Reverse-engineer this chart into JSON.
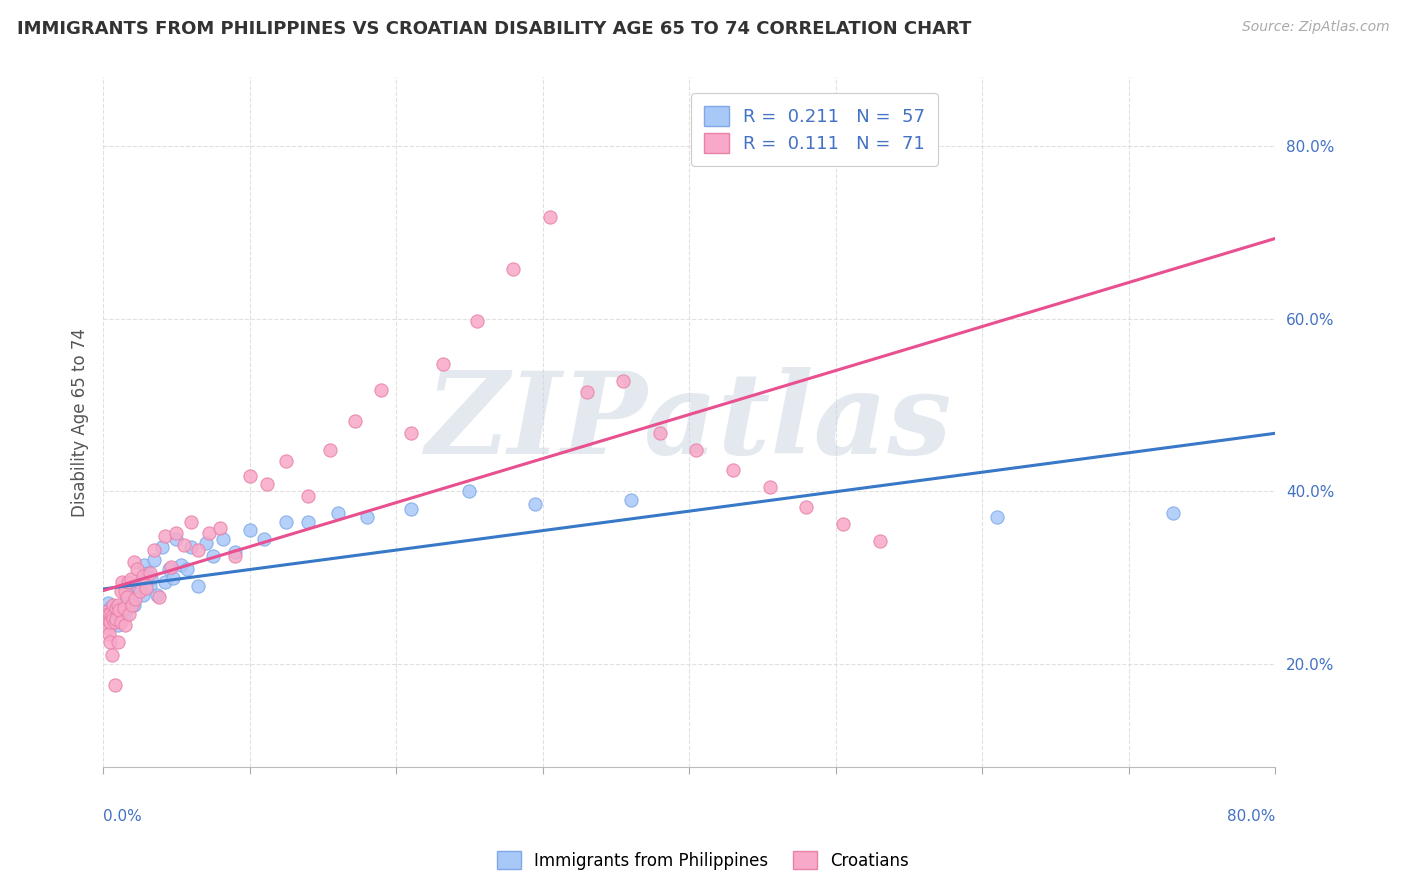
{
  "title": "IMMIGRANTS FROM PHILIPPINES VS CROATIAN DISABILITY AGE 65 TO 74 CORRELATION CHART",
  "source": "Source: ZipAtlas.com",
  "ylabel": "Disability Age 65 to 74",
  "legend_label1": "Immigrants from Philippines",
  "legend_label2": "Croatians",
  "R1": 0.211,
  "N1": 57,
  "R2": 0.111,
  "N2": 71,
  "xlim": [
    0.0,
    0.8
  ],
  "ylim": [
    0.08,
    0.88
  ],
  "yticks": [
    0.2,
    0.4,
    0.6,
    0.8
  ],
  "color_blue": "#A8C8F8",
  "color_pink": "#F8A8C8",
  "color_blue_edge": "#80A8E8",
  "color_pink_edge": "#E880A8",
  "color_blue_line": "#5090D8",
  "color_pink_line": "#E8608888",
  "watermark_color": "#C8D8E8",
  "background_color": "#FFFFFF",
  "blue_points_x": [
    0.003,
    0.005,
    0.006,
    0.007,
    0.008,
    0.008,
    0.009,
    0.01,
    0.01,
    0.011,
    0.012,
    0.013,
    0.013,
    0.014,
    0.015,
    0.015,
    0.016,
    0.017,
    0.018,
    0.019,
    0.02,
    0.021,
    0.022,
    0.023,
    0.025,
    0.027,
    0.028,
    0.03,
    0.032,
    0.033,
    0.035,
    0.037,
    0.04,
    0.042,
    0.045,
    0.048,
    0.05,
    0.053,
    0.057,
    0.06,
    0.065,
    0.07,
    0.075,
    0.082,
    0.09,
    0.1,
    0.11,
    0.125,
    0.14,
    0.16,
    0.18,
    0.21,
    0.25,
    0.295,
    0.36,
    0.61,
    0.73
  ],
  "blue_points_y": [
    0.27,
    0.265,
    0.26,
    0.258,
    0.255,
    0.25,
    0.248,
    0.26,
    0.245,
    0.265,
    0.258,
    0.262,
    0.255,
    0.268,
    0.265,
    0.255,
    0.275,
    0.265,
    0.275,
    0.27,
    0.285,
    0.268,
    0.282,
    0.29,
    0.295,
    0.28,
    0.315,
    0.305,
    0.29,
    0.3,
    0.32,
    0.28,
    0.335,
    0.295,
    0.31,
    0.3,
    0.345,
    0.315,
    0.31,
    0.335,
    0.29,
    0.34,
    0.325,
    0.345,
    0.33,
    0.355,
    0.345,
    0.365,
    0.365,
    0.375,
    0.37,
    0.38,
    0.4,
    0.385,
    0.39,
    0.37,
    0.375
  ],
  "pink_points_x": [
    0.001,
    0.002,
    0.002,
    0.003,
    0.003,
    0.004,
    0.004,
    0.005,
    0.005,
    0.005,
    0.006,
    0.006,
    0.007,
    0.007,
    0.008,
    0.008,
    0.009,
    0.009,
    0.01,
    0.01,
    0.011,
    0.012,
    0.012,
    0.013,
    0.014,
    0.015,
    0.015,
    0.016,
    0.017,
    0.018,
    0.019,
    0.02,
    0.021,
    0.022,
    0.023,
    0.025,
    0.027,
    0.029,
    0.032,
    0.035,
    0.038,
    0.042,
    0.046,
    0.05,
    0.055,
    0.06,
    0.065,
    0.072,
    0.08,
    0.09,
    0.1,
    0.112,
    0.125,
    0.14,
    0.155,
    0.172,
    0.19,
    0.21,
    0.232,
    0.255,
    0.28,
    0.305,
    0.33,
    0.355,
    0.38,
    0.405,
    0.43,
    0.455,
    0.48,
    0.505,
    0.53
  ],
  "pink_points_y": [
    0.26,
    0.255,
    0.248,
    0.258,
    0.242,
    0.252,
    0.235,
    0.258,
    0.248,
    0.225,
    0.255,
    0.21,
    0.252,
    0.268,
    0.248,
    0.175,
    0.252,
    0.265,
    0.268,
    0.225,
    0.262,
    0.285,
    0.248,
    0.295,
    0.265,
    0.285,
    0.245,
    0.278,
    0.295,
    0.258,
    0.298,
    0.268,
    0.318,
    0.275,
    0.31,
    0.285,
    0.302,
    0.288,
    0.305,
    0.332,
    0.278,
    0.348,
    0.312,
    0.352,
    0.338,
    0.365,
    0.332,
    0.352,
    0.358,
    0.325,
    0.418,
    0.408,
    0.435,
    0.395,
    0.448,
    0.482,
    0.518,
    0.468,
    0.548,
    0.598,
    0.658,
    0.718,
    0.515,
    0.528,
    0.468,
    0.448,
    0.425,
    0.405,
    0.382,
    0.362,
    0.342
  ],
  "grid_color": "#DDDDDD",
  "tick_color_x": "#AAAAAA",
  "tick_color_y": "#4472C4",
  "title_fontsize": 13,
  "label_fontsize": 12,
  "tick_fontsize": 11,
  "legend_fontsize": 13
}
